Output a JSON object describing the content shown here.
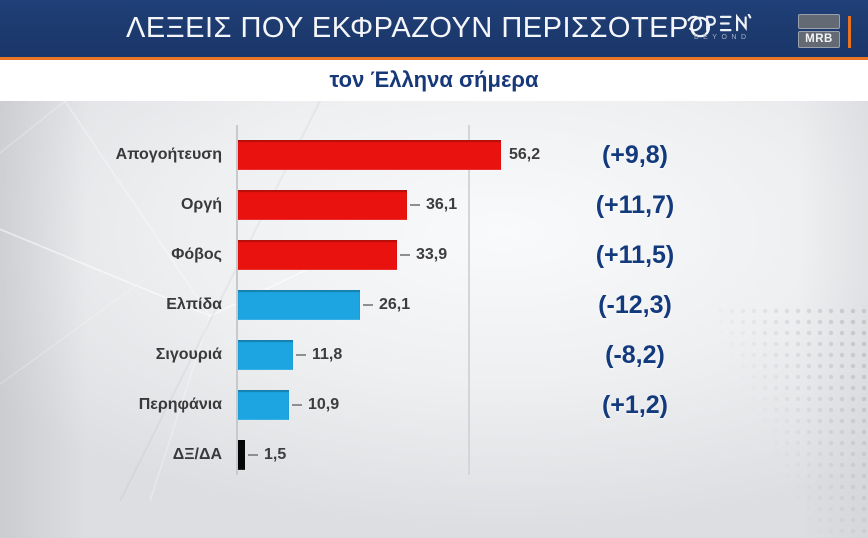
{
  "header": {
    "title": "ΛΕΞΕΙΣ ΠΟΥ ΕΚΦΡΑΖΟΥΝ ΠΕΡΙΣΣΟΤΕΡΟ",
    "open_logo": {
      "name": "OPEN",
      "tagline": "BEYOND"
    },
    "mrb_logo": "MRB"
  },
  "subtitle": "τον Έλληνα σήμερα",
  "chart_data": {
    "type": "bar",
    "orientation": "horizontal",
    "title": "ΛΕΞΕΙΣ ΠΟΥ ΕΚΦΡΑΖΟΥΝ ΠΕΡΙΣΣΟΤΕΡΟ",
    "subtitle": "τον Έλληνα σήμερα",
    "categories": [
      "Απογοήτευση",
      "Οργή",
      "Φόβος",
      "Ελπίδα",
      "Σιγουριά",
      "Περηφάνια",
      "ΔΞ/ΔΑ"
    ],
    "values": [
      56.2,
      36.1,
      33.9,
      26.1,
      11.8,
      10.9,
      1.5
    ],
    "value_labels": [
      "56,2",
      "36,1",
      "33,9",
      "26,1",
      "11,8",
      "10,9",
      "1,5"
    ],
    "change_labels": [
      "(+9,8)",
      "(+11,7)",
      "(+11,5)",
      "(-12,3)",
      "(-8,2)",
      "(+1,2)",
      ""
    ],
    "bar_colors": [
      "#e9120e",
      "#e9120e",
      "#e9120e",
      "#1ca5e0",
      "#1ca5e0",
      "#1ca5e0",
      "#070707"
    ],
    "xlim": [
      0,
      60
    ],
    "gridlines": [
      0,
      50
    ],
    "grid": "vertical-only",
    "legend": "none",
    "value_labels_position": "outside-end",
    "change_labels_position": "right-column"
  },
  "colors": {
    "header_bg": "#1d3b6f",
    "accent_orange": "#ea7524",
    "navy_text": "#17397a",
    "red_bar": "#e9120e",
    "blue_bar": "#1ca5e0",
    "black_bar": "#070707",
    "gridline": "#d4d5d8",
    "label_text": "#39393c"
  }
}
